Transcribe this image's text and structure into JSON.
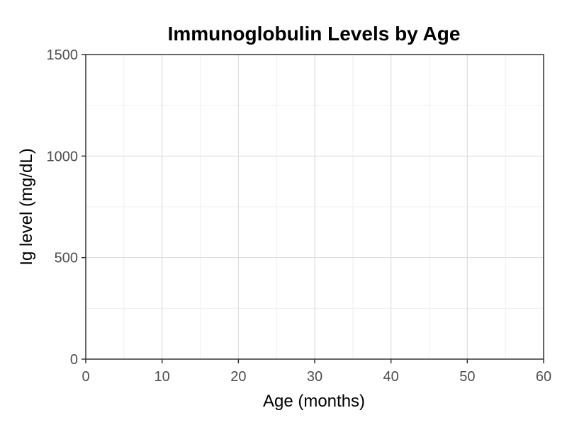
{
  "chart_data": {
    "type": "line",
    "title": "Immunoglobulin Levels by Age",
    "xlabel": "Age (months)",
    "ylabel": "Ig level (mg/dL)",
    "xlim": [
      0,
      60
    ],
    "ylim": [
      0,
      1500
    ],
    "x_ticks": [
      0,
      10,
      20,
      30,
      40,
      50,
      60
    ],
    "y_ticks": [
      0,
      500,
      1000,
      1500
    ],
    "x_minor_ticks": [
      5,
      15,
      25,
      35,
      45,
      55
    ],
    "y_minor_ticks": [
      250,
      750,
      1250
    ],
    "grid": true,
    "series": [],
    "colors": {
      "grid_major": "#d9d9d9",
      "grid_minor": "#efefef",
      "axis": "#333333",
      "tick_text": "#4d4d4d",
      "text": "#000000"
    }
  }
}
